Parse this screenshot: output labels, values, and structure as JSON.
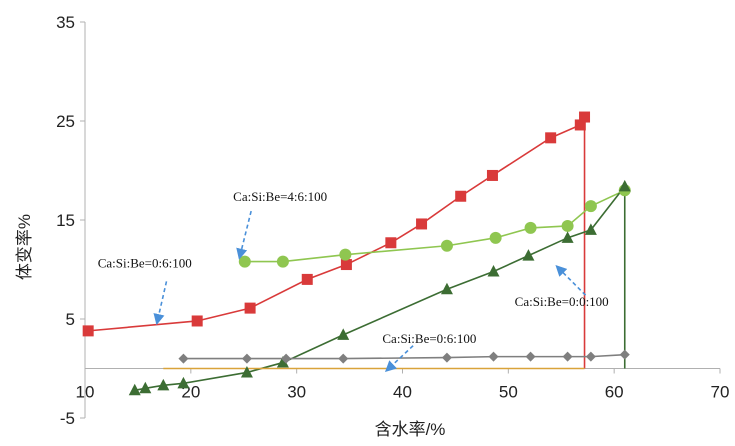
{
  "chart_data": {
    "type": "line",
    "xlabel": "含水率/%",
    "ylabel": "体变率%",
    "xlim": [
      10,
      70
    ],
    "ylim": [
      -5,
      35
    ],
    "xticks": [
      "10",
      "20",
      "30",
      "40",
      "50",
      "60",
      "70"
    ],
    "yticks": [
      "-5",
      "5",
      "15",
      "25",
      "35"
    ],
    "grid": false,
    "series": [
      {
        "name": "red-squares",
        "color": "#d93a3a",
        "marker": "square",
        "x": [
          10.3,
          20.6,
          25.6,
          31.0,
          34.7,
          38.9,
          41.8,
          45.5,
          48.5,
          54.0,
          56.8,
          57.2
        ],
        "y": [
          3.8,
          4.8,
          6.1,
          9.0,
          10.5,
          12.7,
          14.6,
          17.4,
          19.5,
          23.3,
          24.6,
          25.4
        ],
        "drop_to": 0
      },
      {
        "name": "green-circles",
        "color": "#8fc650",
        "marker": "circle",
        "x": [
          25.1,
          28.7,
          34.6,
          44.2,
          48.8,
          52.1,
          55.6,
          57.8,
          61.0
        ],
        "y": [
          10.8,
          10.8,
          11.5,
          12.4,
          13.2,
          14.2,
          14.4,
          16.4,
          18.0
        ]
      },
      {
        "name": "dark-green-triangles",
        "color": "#3c6d33",
        "marker": "triangle",
        "x": [
          14.7,
          15.7,
          17.4,
          19.3,
          25.3,
          28.7,
          34.4,
          44.2,
          48.6,
          51.9,
          55.6,
          57.8,
          61.0
        ],
        "y": [
          -2.2,
          -2.0,
          -1.7,
          -1.5,
          -0.4,
          0.6,
          3.4,
          8.0,
          9.8,
          11.4,
          13.2,
          14.0,
          18.4
        ],
        "drop_to": 0
      },
      {
        "name": "gray-diamonds",
        "color": "#7f7f7f",
        "marker": "diamond",
        "x": [
          19.3,
          25.3,
          29.0,
          34.4,
          44.2,
          48.6,
          52.1,
          55.6,
          57.8,
          61.0
        ],
        "y": [
          1.0,
          1.0,
          1.0,
          1.0,
          1.1,
          1.2,
          1.2,
          1.2,
          1.2,
          1.4
        ]
      },
      {
        "name": "orange-line",
        "color": "#d9a33a",
        "marker": "none",
        "x": [
          17.4,
          57.2
        ],
        "y": [
          0.0,
          0.0
        ]
      }
    ],
    "annotations": [
      {
        "text": "Ca:Si:Be=4:6:100",
        "x": 24.0,
        "y": 16.9,
        "arrow_from": [
          25.7,
          15.9
        ],
        "arrow_to": [
          24.6,
          11.2
        ]
      },
      {
        "text": "Ca:Si:Be=0:6:100",
        "x": 11.2,
        "y": 10.2,
        "arrow_from": [
          17.7,
          8.8
        ],
        "arrow_to": [
          16.8,
          4.6
        ]
      },
      {
        "text": "Ca:Si:Be=0:0:100",
        "x": 50.6,
        "y": 6.3,
        "arrow_from": [
          57.3,
          7.4
        ],
        "arrow_to": [
          54.6,
          10.3
        ]
      },
      {
        "text": "Ca:Si:Be=0:6:100",
        "x": 38.1,
        "y": 2.6,
        "arrow_from": [
          41.0,
          2.3
        ],
        "arrow_to": [
          38.5,
          -0.2
        ]
      }
    ]
  }
}
